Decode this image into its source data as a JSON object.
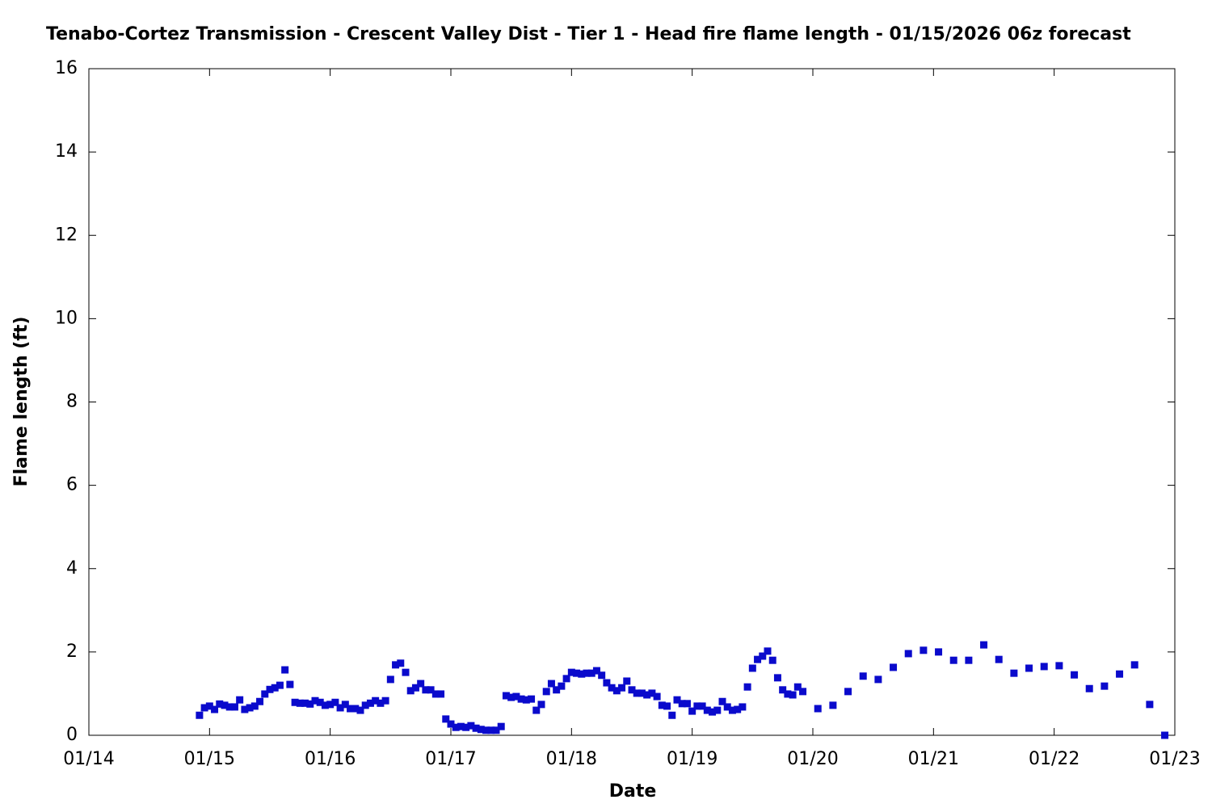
{
  "chart_data": {
    "type": "scatter",
    "title": "Tenabo-Cortez Transmission - Crescent Valley Dist - Tier 1 - Head fire flame length - 01/15/2026 06z forecast",
    "xlabel": "Date",
    "ylabel": "Flame length (ft)",
    "color": "#0a0acc",
    "xlim": [
      "01/14",
      "01/23"
    ],
    "xticks": [
      "01/14",
      "01/15",
      "01/16",
      "01/17",
      "01/18",
      "01/19",
      "01/20",
      "01/21",
      "01/22",
      "01/23"
    ],
    "ylim": [
      0,
      16
    ],
    "yticks": [
      0,
      2,
      4,
      6,
      8,
      10,
      12,
      14,
      16
    ],
    "x": [
      "01/14 22:00",
      "01/14 23:00",
      "01/15 00:00",
      "01/15 01:00",
      "01/15 02:00",
      "01/15 03:00",
      "01/15 04:00",
      "01/15 05:00",
      "01/15 06:00",
      "01/15 07:00",
      "01/15 08:00",
      "01/15 09:00",
      "01/15 10:00",
      "01/15 11:00",
      "01/15 12:00",
      "01/15 13:00",
      "01/15 14:00",
      "01/15 15:00",
      "01/15 16:00",
      "01/15 17:00",
      "01/15 18:00",
      "01/15 19:00",
      "01/15 20:00",
      "01/15 21:00",
      "01/15 22:00",
      "01/15 23:00",
      "01/16 00:00",
      "01/16 01:00",
      "01/16 02:00",
      "01/16 03:00",
      "01/16 04:00",
      "01/16 05:00",
      "01/16 06:00",
      "01/16 07:00",
      "01/16 08:00",
      "01/16 09:00",
      "01/16 10:00",
      "01/16 11:00",
      "01/16 12:00",
      "01/16 13:00",
      "01/16 14:00",
      "01/16 15:00",
      "01/16 16:00",
      "01/16 17:00",
      "01/16 18:00",
      "01/16 19:00",
      "01/16 20:00",
      "01/16 21:00",
      "01/16 22:00",
      "01/16 23:00",
      "01/17 00:00",
      "01/17 01:00",
      "01/17 02:00",
      "01/17 03:00",
      "01/17 04:00",
      "01/17 05:00",
      "01/17 06:00",
      "01/17 07:00",
      "01/17 08:00",
      "01/17 09:00",
      "01/17 10:00",
      "01/17 11:00",
      "01/17 12:00",
      "01/17 13:00",
      "01/17 14:00",
      "01/17 15:00",
      "01/17 16:00",
      "01/17 17:00",
      "01/17 18:00",
      "01/17 19:00",
      "01/17 20:00",
      "01/17 21:00",
      "01/17 22:00",
      "01/17 23:00",
      "01/18 00:00",
      "01/18 01:00",
      "01/18 02:00",
      "01/18 03:00",
      "01/18 04:00",
      "01/18 05:00",
      "01/18 06:00",
      "01/18 07:00",
      "01/18 08:00",
      "01/18 09:00",
      "01/18 10:00",
      "01/18 11:00",
      "01/18 12:00",
      "01/18 13:00",
      "01/18 14:00",
      "01/18 15:00",
      "01/18 16:00",
      "01/18 17:00",
      "01/18 18:00",
      "01/18 19:00",
      "01/18 20:00",
      "01/18 21:00",
      "01/18 22:00",
      "01/18 23:00",
      "01/19 00:00",
      "01/19 01:00",
      "01/19 02:00",
      "01/19 03:00",
      "01/19 04:00",
      "01/19 05:00",
      "01/19 06:00",
      "01/19 07:00",
      "01/19 08:00",
      "01/19 09:00",
      "01/19 10:00",
      "01/19 11:00",
      "01/19 12:00",
      "01/19 13:00",
      "01/19 14:00",
      "01/19 15:00",
      "01/19 16:00",
      "01/19 17:00",
      "01/19 18:00",
      "01/19 19:00",
      "01/19 20:00",
      "01/19 21:00",
      "01/19 22:00",
      "01/20 01:00",
      "01/20 04:00",
      "01/20 07:00",
      "01/20 10:00",
      "01/20 13:00",
      "01/20 16:00",
      "01/20 19:00",
      "01/20 22:00",
      "01/21 01:00",
      "01/21 04:00",
      "01/21 07:00",
      "01/21 10:00",
      "01/21 13:00",
      "01/21 16:00",
      "01/21 19:00",
      "01/21 22:00",
      "01/22 01:00",
      "01/22 04:00",
      "01/22 07:00",
      "01/22 10:00",
      "01/22 13:00",
      "01/22 16:00",
      "01/22 19:00",
      "01/22 22:00"
    ],
    "values": [
      0.48,
      0.66,
      0.7,
      0.62,
      0.75,
      0.72,
      0.68,
      0.68,
      0.85,
      0.62,
      0.66,
      0.7,
      0.81,
      0.99,
      1.1,
      1.14,
      1.2,
      1.57,
      1.22,
      0.79,
      0.77,
      0.77,
      0.75,
      0.83,
      0.79,
      0.72,
      0.74,
      0.79,
      0.66,
      0.74,
      0.64,
      0.64,
      0.6,
      0.72,
      0.77,
      0.83,
      0.77,
      0.83,
      1.34,
      1.69,
      1.73,
      1.51,
      1.07,
      1.14,
      1.24,
      1.09,
      1.09,
      0.99,
      0.99,
      0.39,
      0.27,
      0.19,
      0.21,
      0.19,
      0.23,
      0.17,
      0.14,
      0.12,
      0.12,
      0.12,
      0.21,
      0.95,
      0.91,
      0.93,
      0.87,
      0.85,
      0.87,
      0.6,
      0.74,
      1.05,
      1.24,
      1.09,
      1.18,
      1.36,
      1.51,
      1.49,
      1.47,
      1.49,
      1.49,
      1.55,
      1.44,
      1.26,
      1.14,
      1.07,
      1.14,
      1.3,
      1.09,
      1.01,
      1.01,
      0.97,
      1.01,
      0.93,
      0.72,
      0.7,
      0.48,
      0.85,
      0.76,
      0.76,
      0.58,
      0.7,
      0.7,
      0.6,
      0.56,
      0.6,
      0.81,
      0.68,
      0.6,
      0.62,
      0.68,
      1.16,
      1.61,
      1.82,
      1.9,
      2.02,
      1.8,
      1.38,
      1.09,
      0.99,
      0.97,
      1.16,
      1.05,
      0.64,
      0.72,
      1.05,
      1.42,
      1.34,
      1.63,
      1.96,
      2.04,
      2.0,
      1.8,
      1.8,
      2.17,
      1.82,
      1.49,
      1.61,
      1.65,
      1.67,
      1.45,
      1.12,
      1.18,
      1.47,
      1.69,
      0.74,
      0
    ]
  }
}
